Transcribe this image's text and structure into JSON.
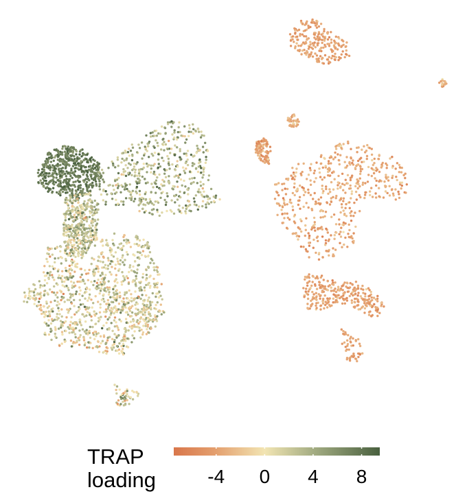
{
  "chart_data": {
    "type": "scatter",
    "title": "",
    "xlabel": "",
    "ylabel": "",
    "grid": false,
    "legend": {
      "title_line1": "TRAP",
      "title_line2": "loading",
      "placement": "bottom",
      "range": [
        -7.5,
        9.5
      ],
      "ticks": [
        -4,
        0,
        4,
        8
      ],
      "tick_labels": [
        "-4",
        "0",
        "4",
        "8"
      ]
    },
    "color_scale": {
      "stops": [
        {
          "value": -7.5,
          "color": "#d9774b"
        },
        {
          "value": -4,
          "color": "#e4a06f"
        },
        {
          "value": 0,
          "color": "#f2e5b3"
        },
        {
          "value": 4,
          "color": "#a4ad83"
        },
        {
          "value": 9.5,
          "color": "#49603f"
        }
      ]
    },
    "clusters": [
      {
        "name": "",
        "loading_mean": 7.5,
        "loading_sd": 1.2
      },
      {
        "name": "",
        "loading_mean": 2.5,
        "loading_sd": 2.5
      },
      {
        "name": "",
        "loading_mean": 3.5,
        "loading_sd": 2.5
      },
      {
        "name": "",
        "loading_mean": 1.5,
        "loading_sd": 2.2
      },
      {
        "name": "",
        "loading_mean": 1.0,
        "loading_sd": 2.8
      },
      {
        "name": "",
        "loading_mean": 2.0,
        "loading_sd": 3.5
      },
      {
        "name": "",
        "loading_mean": -3.6,
        "loading_sd": 1.3
      },
      {
        "name": "",
        "loading_mean": -4.0,
        "loading_sd": 1.0
      },
      {
        "name": "",
        "loading_mean": -4.0,
        "loading_sd": 1.1
      },
      {
        "name": "",
        "loading_mean": -3.8,
        "loading_sd": 1.3
      },
      {
        "name": "",
        "loading_mean": -4.0,
        "loading_sd": 1.0
      },
      {
        "name": "",
        "loading_mean": -3.5,
        "loading_sd": 1.3
      },
      {
        "name": "",
        "loading_mean": -2.5,
        "loading_sd": 1.5
      }
    ]
  }
}
